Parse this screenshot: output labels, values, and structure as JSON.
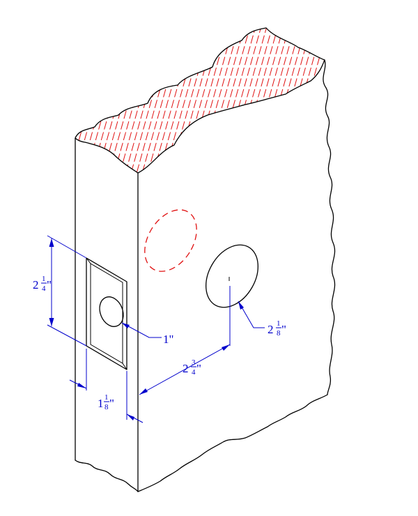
{
  "dimensions": {
    "height_whole": "2",
    "height_num": "1",
    "height_den": "4",
    "hole_small": "1\"",
    "backset_whole": "2",
    "backset_num": "3",
    "backset_den": "4",
    "bore_whole": "2",
    "bore_num": "1",
    "bore_den": "8",
    "thick_whole": "1",
    "thick_num": "1",
    "thick_den": "8",
    "inch_mark": "\""
  },
  "colors": {
    "outline": "#000000",
    "dimension": "#0000cc",
    "section_hatch": "#e01010",
    "hidden_line": "#e01010"
  }
}
